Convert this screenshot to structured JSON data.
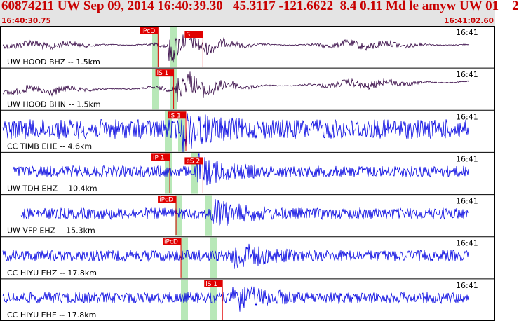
{
  "header": {
    "title": "60874211 UW Sep 09, 2014 16:40:39.30   45.3117 -121.6622  8.4 0.11 Md le amyw UW 01    2",
    "start_time": "16:40:30.75",
    "end_time": "16:41:02.60"
  },
  "colors": {
    "header_bg": "#e4e4e4",
    "header_text": "#c80000",
    "trace_blue": "#0000e0",
    "trace_dark": "#300040",
    "pick_red": "#e00000",
    "window_green": "#b8e8b8"
  },
  "channels": [
    {
      "label": "UW HOOD BHZ -- 1.5km",
      "time_label": "16:41",
      "color": "dark",
      "picks": [
        {
          "label": "iPcD",
          "x": 0.318
        },
        {
          "label": "S",
          "x": 0.41
        }
      ]
    },
    {
      "label": "UW HOOD BHN -- 1.5km",
      "time_label": "16:41",
      "color": "dark",
      "picks": [
        {
          "label": "iS 1",
          "x": 0.35
        }
      ]
    },
    {
      "label": "CC TIMB EHE -- 4.6km",
      "time_label": "16:41",
      "color": "blue",
      "picks": [
        {
          "label": "iS 1",
          "x": 0.375
        }
      ]
    },
    {
      "label": "UW TDH EHZ -- 10.4km",
      "time_label": "16:41",
      "color": "blue",
      "picks": [
        {
          "label": "iP 1",
          "x": 0.342
        },
        {
          "label": "eS 2",
          "x": 0.41
        }
      ]
    },
    {
      "label": "UW VFP EHZ -- 15.3km",
      "time_label": "16:41",
      "color": "blue",
      "picks": [
        {
          "label": "iPcD",
          "x": 0.355
        }
      ]
    },
    {
      "label": "CC HIYU EHZ -- 17.8km",
      "time_label": "16:41",
      "color": "blue",
      "picks": [
        {
          "label": "iPcD",
          "x": 0.365
        }
      ]
    },
    {
      "label": "CC HIYU EHE -- 17.8km",
      "time_label": "16:41",
      "color": "blue",
      "picks": [
        {
          "label": "iS 1",
          "x": 0.45
        }
      ]
    }
  ]
}
